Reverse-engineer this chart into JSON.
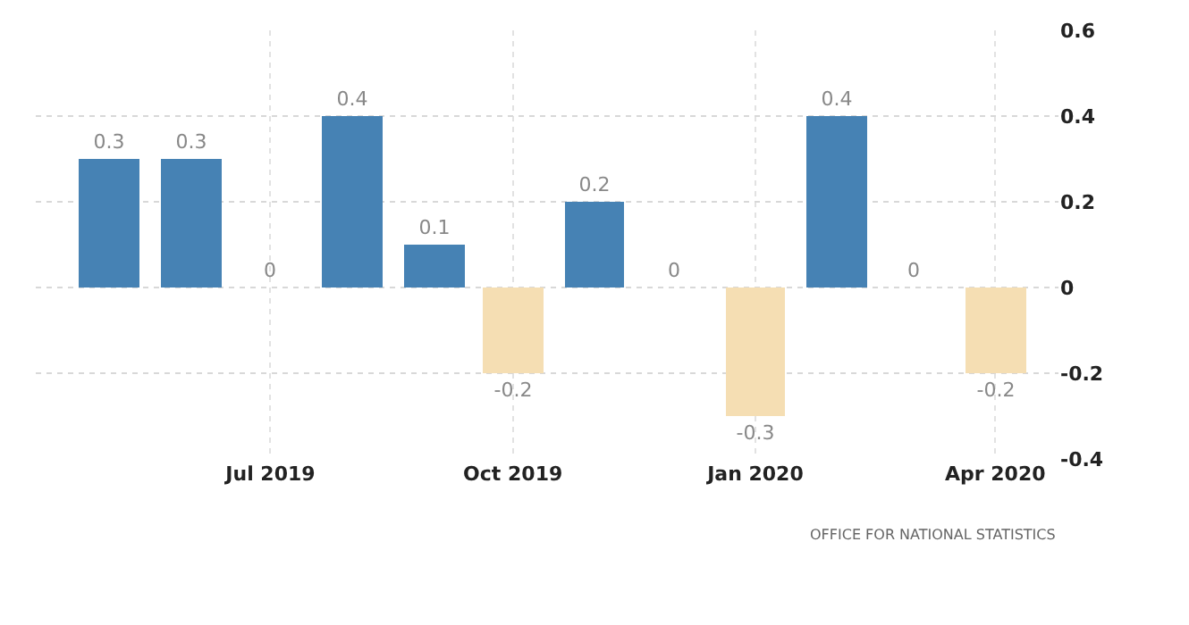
{
  "chart_data": {
    "type": "bar",
    "x": [
      "2019-05",
      "2019-06",
      "2019-07",
      "2019-08",
      "2019-09",
      "2019-10",
      "2019-11",
      "2019-12",
      "2020-01",
      "2020-02",
      "2020-03",
      "2020-04"
    ],
    "values": [
      0.3,
      0.3,
      0,
      0.4,
      0.1,
      -0.2,
      0.2,
      0,
      -0.3,
      0.4,
      0,
      -0.2
    ],
    "colors": [
      "#4682b4",
      "#4682b4",
      "#4682b4",
      "#4682b4",
      "#4682b4",
      "#f5deb3",
      "#4682b4",
      "#4682b4",
      "#f5deb3",
      "#4682b4",
      "#4682b4",
      "#f5deb3"
    ],
    "data_labels": true,
    "xlim": [
      "2019-04-03",
      "2020-04-25"
    ],
    "xticks": [
      {
        "value": "2019-07",
        "label": "Jul 2019"
      },
      {
        "value": "2019-10",
        "label": "Oct 2019"
      },
      {
        "value": "2020-01",
        "label": "Jan 2020"
      },
      {
        "value": "2020-04",
        "label": "Apr 2020"
      }
    ],
    "ylim": [
      -0.4,
      0.6
    ],
    "yticks": [
      -0.4,
      -0.2,
      0,
      0.2,
      0.4,
      0.6
    ],
    "grid": true,
    "annotations": [
      "OFFICE FOR NATIONAL STATISTICS"
    ]
  }
}
